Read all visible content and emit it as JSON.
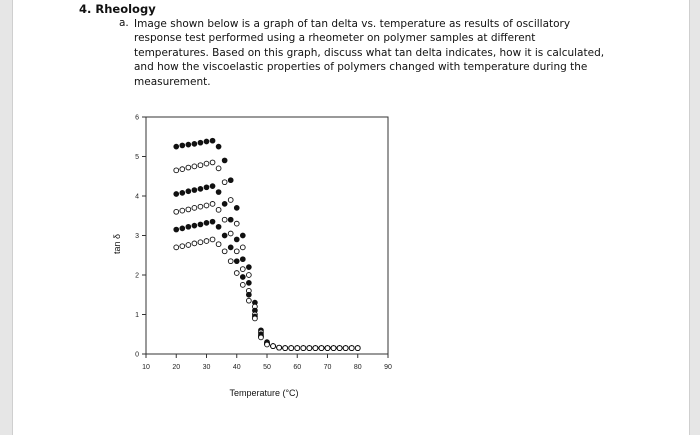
{
  "document": {
    "heading": "4.  Rheology",
    "question_label": "a.",
    "question_text": "Image shown below is a graph of tan delta vs. temperature as results of oscillatory response test performed using a rheometer on polymer samples at different temperatures. Based on this graph, discuss what tan delta indicates, how it is calculated, and how the viscoelastic properties of polymers changed with temperature during the measurement."
  },
  "chart_data": {
    "type": "scatter",
    "xlabel": "Temperature (°C)",
    "ylabel": "tan δ",
    "xlim": [
      10,
      90
    ],
    "ylim": [
      0,
      6
    ],
    "x_ticks": [
      10,
      20,
      30,
      40,
      50,
      60,
      70,
      80,
      90
    ],
    "y_ticks": [
      0,
      1,
      2,
      3,
      4,
      5,
      6
    ],
    "grid": false,
    "series": [
      {
        "marker": "filled",
        "x": [
          20,
          22,
          24,
          26,
          28,
          30,
          32,
          34,
          36,
          38,
          40,
          42,
          44,
          46,
          48,
          50,
          52,
          54,
          56,
          58,
          60,
          62,
          64,
          66,
          68,
          70,
          72,
          74,
          76,
          78,
          80
        ],
        "y": [
          5.25,
          5.28,
          5.3,
          5.32,
          5.35,
          5.38,
          5.4,
          5.25,
          4.9,
          4.4,
          3.7,
          3.0,
          2.2,
          1.3,
          0.6,
          0.3,
          0.2,
          0.16,
          0.15,
          0.15,
          0.15,
          0.15,
          0.15,
          0.15,
          0.15,
          0.15,
          0.15,
          0.15,
          0.15,
          0.15,
          0.15
        ]
      },
      {
        "marker": "open",
        "x": [
          20,
          22,
          24,
          26,
          28,
          30,
          32,
          34,
          36,
          38,
          40,
          42,
          44,
          46,
          48,
          50,
          52,
          54,
          56,
          58,
          60,
          62,
          64,
          66,
          68,
          70,
          72,
          74,
          76,
          78,
          80
        ],
        "y": [
          4.65,
          4.68,
          4.72,
          4.75,
          4.78,
          4.82,
          4.85,
          4.7,
          4.35,
          3.9,
          3.3,
          2.7,
          2.0,
          1.2,
          0.55,
          0.28,
          0.2,
          0.16,
          0.15,
          0.15,
          0.15,
          0.15,
          0.15,
          0.15,
          0.15,
          0.15,
          0.15,
          0.15,
          0.15,
          0.15,
          0.15
        ]
      },
      {
        "marker": "filled",
        "x": [
          20,
          22,
          24,
          26,
          28,
          30,
          32,
          34,
          36,
          38,
          40,
          42,
          44,
          46,
          48,
          50,
          52,
          54,
          56,
          58,
          60,
          62,
          64,
          66,
          68,
          70,
          72,
          74,
          76,
          78,
          80
        ],
        "y": [
          4.05,
          4.08,
          4.12,
          4.15,
          4.18,
          4.22,
          4.25,
          4.1,
          3.8,
          3.4,
          2.9,
          2.4,
          1.8,
          1.1,
          0.5,
          0.26,
          0.2,
          0.16,
          0.15,
          0.15,
          0.15,
          0.15,
          0.15,
          0.15,
          0.15,
          0.15,
          0.15,
          0.15,
          0.15,
          0.15,
          0.15
        ]
      },
      {
        "marker": "open",
        "x": [
          20,
          22,
          24,
          26,
          28,
          30,
          32,
          34,
          36,
          38,
          40,
          42,
          44,
          46,
          48,
          50,
          52,
          54,
          56,
          58,
          60,
          62,
          64,
          66,
          68,
          70,
          72,
          74,
          76,
          78,
          80
        ],
        "y": [
          3.6,
          3.63,
          3.66,
          3.7,
          3.73,
          3.76,
          3.8,
          3.65,
          3.4,
          3.05,
          2.6,
          2.15,
          1.6,
          1.0,
          0.45,
          0.25,
          0.2,
          0.16,
          0.15,
          0.15,
          0.15,
          0.15,
          0.15,
          0.15,
          0.15,
          0.15,
          0.15,
          0.15,
          0.15,
          0.15,
          0.15
        ]
      },
      {
        "marker": "filled",
        "x": [
          20,
          22,
          24,
          26,
          28,
          30,
          32,
          34,
          36,
          38,
          40,
          42,
          44,
          46,
          48,
          50,
          52,
          54,
          56,
          58,
          60,
          62,
          64,
          66,
          68,
          70,
          72,
          74,
          76,
          78,
          80
        ],
        "y": [
          3.15,
          3.18,
          3.22,
          3.25,
          3.28,
          3.32,
          3.35,
          3.22,
          3.0,
          2.7,
          2.35,
          1.95,
          1.5,
          0.95,
          0.45,
          0.25,
          0.2,
          0.16,
          0.15,
          0.15,
          0.15,
          0.15,
          0.15,
          0.15,
          0.15,
          0.15,
          0.15,
          0.15,
          0.15,
          0.15,
          0.15
        ]
      },
      {
        "marker": "open",
        "x": [
          20,
          22,
          24,
          26,
          28,
          30,
          32,
          34,
          36,
          38,
          40,
          42,
          44,
          46,
          48,
          50,
          52,
          54,
          56,
          58,
          60,
          62,
          64,
          66,
          68,
          70,
          72,
          74,
          76,
          78,
          80
        ],
        "y": [
          2.7,
          2.73,
          2.76,
          2.8,
          2.83,
          2.86,
          2.9,
          2.78,
          2.6,
          2.35,
          2.05,
          1.75,
          1.35,
          0.9,
          0.42,
          0.24,
          0.2,
          0.16,
          0.15,
          0.15,
          0.15,
          0.15,
          0.15,
          0.15,
          0.15,
          0.15,
          0.15,
          0.15,
          0.15,
          0.15,
          0.15
        ]
      }
    ]
  }
}
